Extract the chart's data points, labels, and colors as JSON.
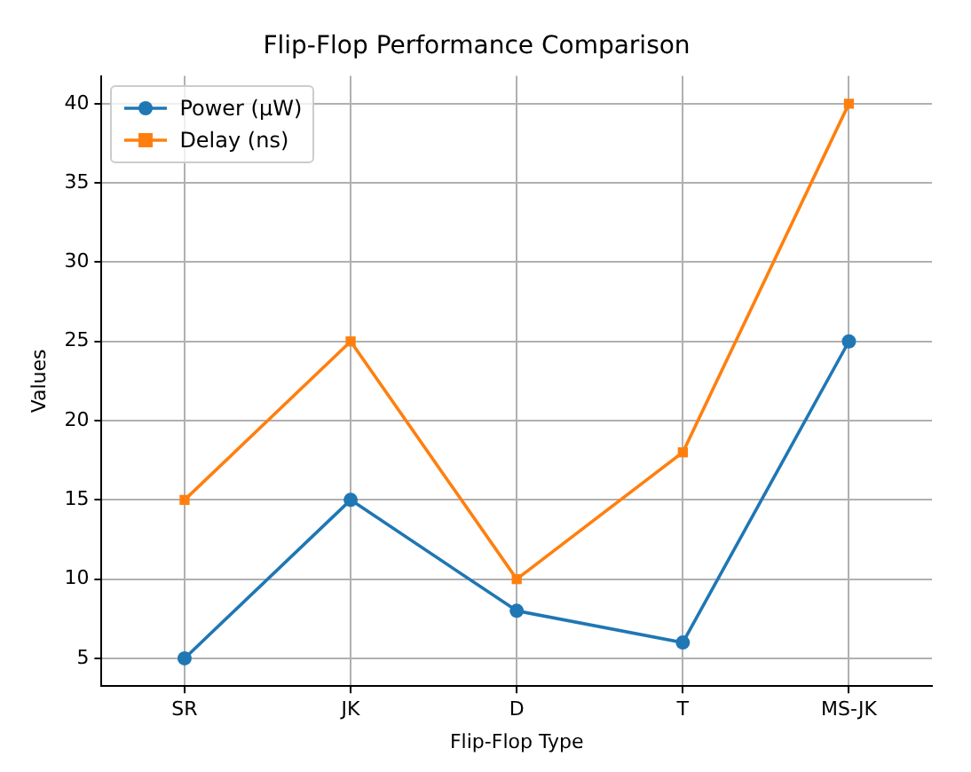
{
  "chart_data": {
    "type": "line",
    "title": "Flip-Flop Performance Comparison",
    "xlabel": "Flip-Flop Type",
    "ylabel": "Values",
    "categories": [
      "SR",
      "JK",
      "D",
      "T",
      "MS-JK"
    ],
    "series": [
      {
        "name": "Power (µW)",
        "color": "#1f77b4",
        "marker": "circle",
        "values": [
          5,
          15,
          8,
          6,
          25
        ]
      },
      {
        "name": "Delay (ns)",
        "color": "#ff7f0e",
        "marker": "square",
        "values": [
          15,
          25,
          10,
          18,
          40
        ]
      }
    ],
    "ylim": [
      3.25,
      41.75
    ],
    "yticks": [
      5,
      10,
      15,
      20,
      25,
      30,
      35,
      40
    ],
    "grid": true,
    "legend": "top left",
    "line_style": "solid"
  }
}
